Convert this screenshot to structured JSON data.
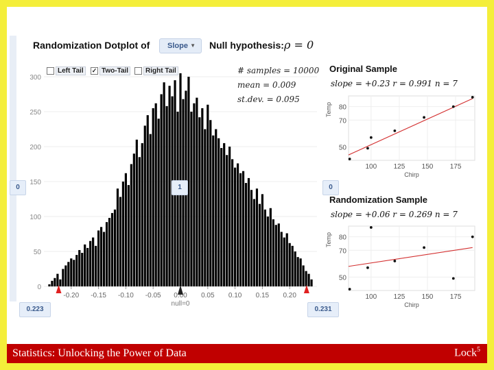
{
  "footer": {
    "left_text": "Statistics: Unlocking the Power of Data",
    "right_text": "Lock",
    "right_sup": "5"
  },
  "header": {
    "title": "Randomization Dotplot of",
    "statistic_select": "Slope",
    "null_label": "Null hypothesis:",
    "null_value": "ρ = 0"
  },
  "tails": {
    "left": "Left Tail",
    "two": "Two-Tail",
    "right": "Right Tail",
    "two_checked": true,
    "left_checked": false,
    "right_checked": false
  },
  "stats": {
    "samples": "# samples = 10000",
    "mean": "mean = 0.009",
    "stdev": "st.dev. = 0.095"
  },
  "markers": {
    "left_count": "0",
    "mid_count": "1",
    "right_count": "0",
    "left_value": "0.223",
    "right_value": "0.231",
    "null_text": "null=0"
  },
  "colors": {
    "frame": "#f4ee3a",
    "footer": "#c00000",
    "tail_marker": "#e02020",
    "fit_line": "#d32f2f"
  },
  "chart_data": [
    {
      "type": "bar",
      "title": "",
      "xlabel": "",
      "ylabel": "",
      "xlim": [
        -0.25,
        0.25
      ],
      "ylim": [
        0,
        300
      ],
      "x_ticks": [
        "-0.20",
        "-0.15",
        "-0.10",
        "-0.05",
        "0.00",
        "0.05",
        "0.10",
        "0.15",
        "0.20"
      ],
      "y_ticks": [
        "0",
        "50",
        "100",
        "150",
        "200",
        "250",
        "300"
      ],
      "x_tick_values": [
        -0.2,
        -0.15,
        -0.1,
        -0.05,
        0,
        0.05,
        0.1,
        0.15,
        0.2
      ],
      "y_tick_values": [
        0,
        50,
        100,
        150,
        200,
        250,
        300
      ],
      "x": [
        -0.24,
        -0.235,
        -0.23,
        -0.225,
        -0.22,
        -0.215,
        -0.21,
        -0.205,
        -0.2,
        -0.195,
        -0.19,
        -0.185,
        -0.18,
        -0.175,
        -0.17,
        -0.165,
        -0.16,
        -0.155,
        -0.15,
        -0.145,
        -0.14,
        -0.135,
        -0.13,
        -0.125,
        -0.12,
        -0.115,
        -0.11,
        -0.105,
        -0.1,
        -0.095,
        -0.09,
        -0.085,
        -0.08,
        -0.075,
        -0.07,
        -0.065,
        -0.06,
        -0.055,
        -0.05,
        -0.045,
        -0.04,
        -0.035,
        -0.03,
        -0.025,
        -0.02,
        -0.015,
        -0.01,
        -0.005,
        0,
        0.005,
        0.01,
        0.015,
        0.02,
        0.025,
        0.03,
        0.035,
        0.04,
        0.045,
        0.05,
        0.055,
        0.06,
        0.065,
        0.07,
        0.075,
        0.08,
        0.085,
        0.09,
        0.095,
        0.1,
        0.105,
        0.11,
        0.115,
        0.12,
        0.125,
        0.13,
        0.135,
        0.14,
        0.145,
        0.15,
        0.155,
        0.16,
        0.165,
        0.17,
        0.175,
        0.18,
        0.185,
        0.19,
        0.195,
        0.2,
        0.205,
        0.21,
        0.215,
        0.22,
        0.225,
        0.23,
        0.235,
        0.24
      ],
      "values": [
        3,
        8,
        12,
        18,
        10,
        25,
        30,
        35,
        40,
        38,
        45,
        52,
        48,
        60,
        55,
        65,
        70,
        58,
        80,
        85,
        78,
        92,
        98,
        105,
        110,
        140,
        128,
        150,
        162,
        145,
        175,
        190,
        210,
        185,
        205,
        230,
        245,
        218,
        255,
        262,
        240,
        275,
        292,
        258,
        287,
        272,
        295,
        250,
        305,
        268,
        280,
        300,
        250,
        262,
        270,
        242,
        255,
        225,
        260,
        238,
        216,
        225,
        212,
        198,
        205,
        188,
        200,
        182,
        170,
        176,
        162,
        165,
        148,
        155,
        138,
        125,
        140,
        118,
        132,
        110,
        100,
        112,
        96,
        88,
        90,
        78,
        70,
        76,
        62,
        58,
        50,
        42,
        40,
        30,
        22,
        18,
        10
      ]
    },
    {
      "type": "scatter",
      "title": "Original Sample",
      "equation": "slope = +0.23   r = 0.991   n = 7",
      "xlabel": "Chirp",
      "ylabel": "Temp",
      "x_ticks": [
        "100",
        "125",
        "150",
        "175"
      ],
      "y_ticks": [
        "50",
        "70",
        "80"
      ],
      "x_tick_values": [
        100,
        125,
        150,
        175
      ],
      "y_tick_values": [
        50,
        70,
        80
      ],
      "xlim": [
        80,
        192
      ],
      "ylim": [
        40,
        88
      ],
      "x": [
        81,
        97,
        100,
        121,
        147,
        173,
        190
      ],
      "y": [
        41,
        49,
        57,
        62,
        72,
        80,
        87
      ],
      "fit": {
        "x": [
          80,
          190
        ],
        "y": [
          44,
          86
        ]
      }
    },
    {
      "type": "scatter",
      "title": "Randomization Sample",
      "equation": "slope = +0.06   r = 0.269   n = 7",
      "xlabel": "Chirp",
      "ylabel": "Temp",
      "x_ticks": [
        "100",
        "125",
        "150",
        "175"
      ],
      "y_ticks": [
        "50",
        "70",
        "80"
      ],
      "x_tick_values": [
        100,
        125,
        150,
        175
      ],
      "y_tick_values": [
        50,
        70,
        80
      ],
      "xlim": [
        80,
        192
      ],
      "ylim": [
        40,
        88
      ],
      "x": [
        81,
        97,
        100,
        121,
        147,
        173,
        190
      ],
      "y": [
        41,
        57,
        87,
        62,
        72,
        49,
        80
      ],
      "fit": {
        "x": [
          80,
          190
        ],
        "y": [
          58,
          72
        ]
      }
    }
  ]
}
